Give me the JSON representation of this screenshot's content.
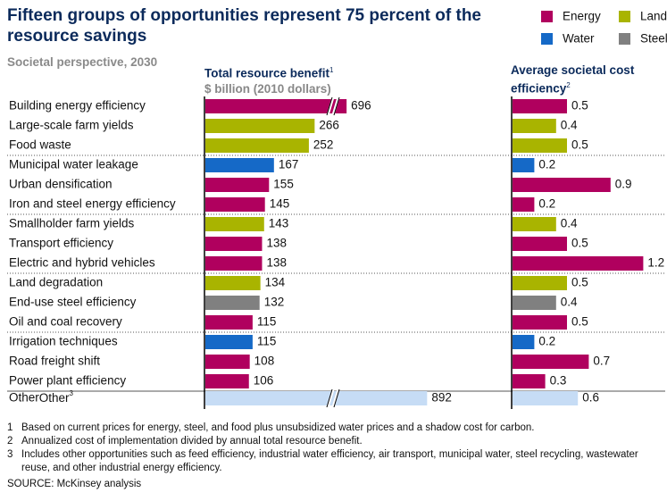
{
  "chart_data": {
    "type": "bar",
    "title": "Fifteen groups of opportunities represent 75 percent of the resource savings",
    "subtitle": "Societal perspective, 2030",
    "legend": [
      {
        "name": "Energy",
        "color": "#b0005e"
      },
      {
        "name": "Land",
        "color": "#a9b400"
      },
      {
        "name": "Water",
        "color": "#1569c7"
      },
      {
        "name": "Steel",
        "color": "#808080"
      }
    ],
    "categories": [
      "Building energy efficiency",
      "Large-scale farm yields",
      "Food waste",
      "Municipal water leakage",
      "Urban densification",
      "Iron and steel energy efficiency",
      "Smallholder farm yields",
      "Transport efficiency",
      "Electric and hybrid vehicles",
      "Land degradation",
      "End-use steel efficiency",
      "Oil and coal recovery",
      "Irrigation techniques",
      "Road freight shift",
      "Power plant efficiency",
      "Other"
    ],
    "other_note_ref": "3",
    "colors": [
      "#b0005e",
      "#a9b400",
      "#a9b400",
      "#1569c7",
      "#b0005e",
      "#b0005e",
      "#a9b400",
      "#b0005e",
      "#b0005e",
      "#a9b400",
      "#808080",
      "#b0005e",
      "#1569c7",
      "#b0005e",
      "#b0005e",
      "#c6dcf5"
    ],
    "panels": [
      {
        "title": "Total resource benefit",
        "note_ref": "1",
        "unit": "$ billion (2010 dollars)",
        "values": [
          696,
          266,
          252,
          167,
          155,
          145,
          143,
          138,
          138,
          134,
          132,
          115,
          115,
          108,
          106,
          892
        ]
      },
      {
        "title": "Average societal cost efficiency",
        "note_ref": "2",
        "values": [
          0.5,
          0.4,
          0.5,
          0.2,
          0.9,
          0.2,
          0.4,
          0.5,
          1.2,
          0.5,
          0.4,
          0.5,
          0.2,
          0.7,
          0.3,
          0.6
        ]
      }
    ],
    "footnotes": [
      {
        "num": "1",
        "text": "Based on current prices for energy, steel, and food plus unsubsidized water prices and a shadow cost for carbon."
      },
      {
        "num": "2",
        "text": "Annualized cost of implementation divided by annual total resource benefit."
      },
      {
        "num": "3",
        "text": "Includes other opportunities such as feed efficiency, industrial water efficiency, air transport, municipal water, steel recycling, wastewater reuse, and other industrial energy efficiency."
      }
    ],
    "source": "SOURCE: McKinsey analysis"
  }
}
